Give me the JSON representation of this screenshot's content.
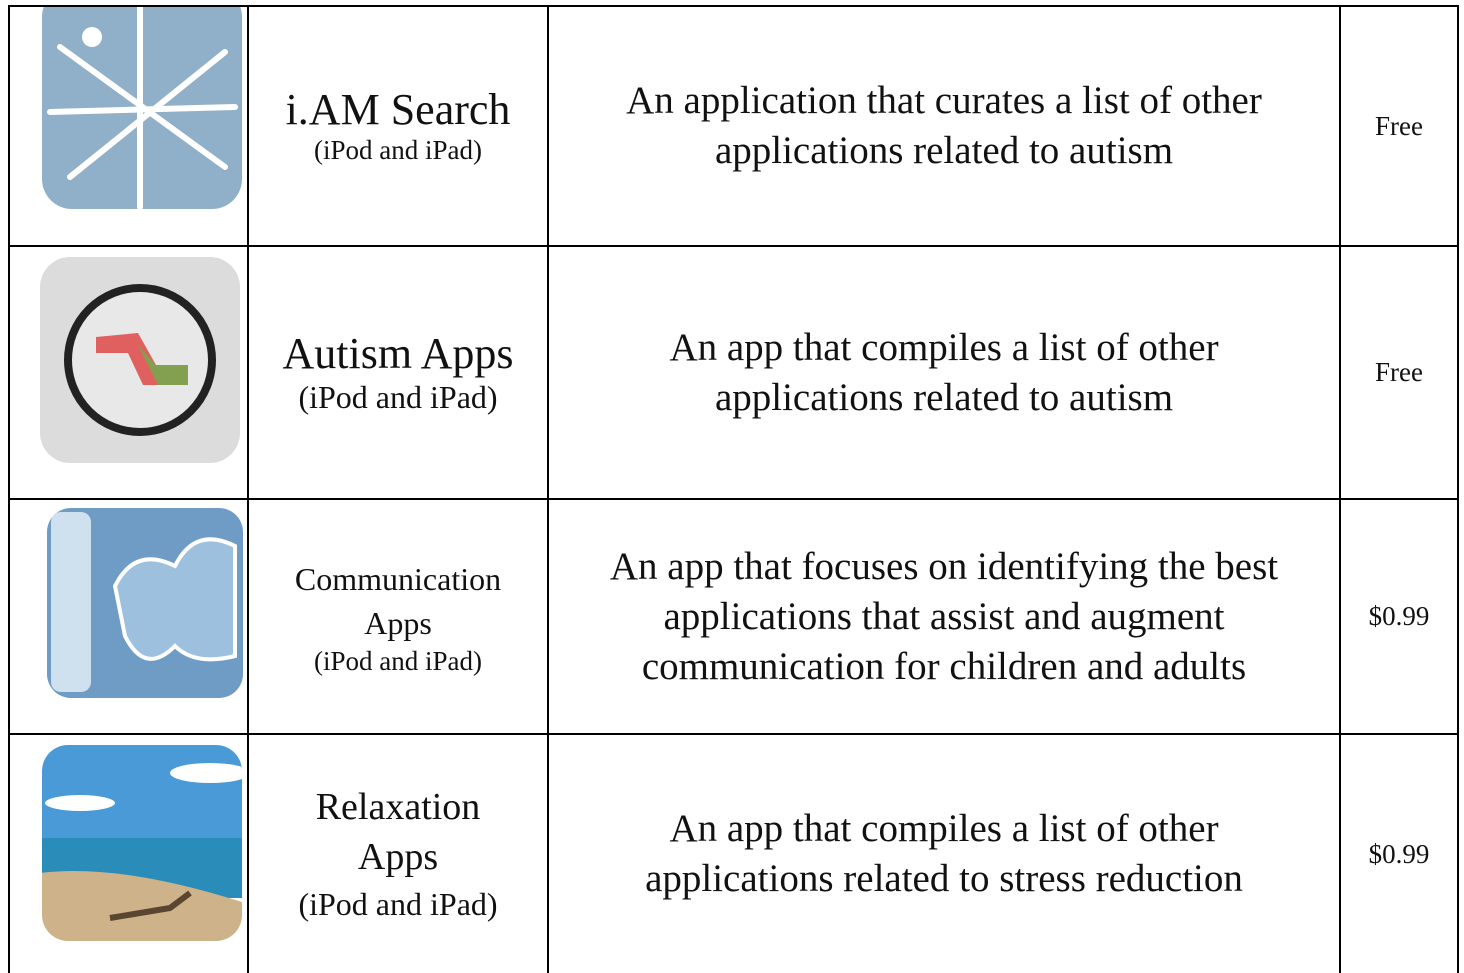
{
  "table": {
    "rows": [
      {
        "name": "i.AM Search",
        "platform": "(iPod and iPad)",
        "description": "An application that curates a list of other applications related to autism",
        "price": "Free"
      },
      {
        "name": "Autism Apps",
        "platform": "(iPod and iPad)",
        "description": "An app that compiles a list of other applications related to autism",
        "price": "Free"
      },
      {
        "name": "Communication Apps",
        "platform": "(iPod and iPad)",
        "description": "An app that focuses on identifying the best applications that assist and augment communication for children and adults",
        "price": "$0.99"
      },
      {
        "name": "Relaxation Apps",
        "platform": "(iPod and iPad)",
        "description": "An app that compiles a list of other applications related to stress reduction",
        "price": "$0.99"
      }
    ]
  }
}
